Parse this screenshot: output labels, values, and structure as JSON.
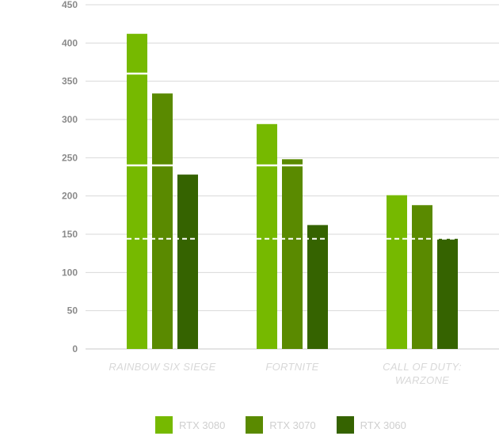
{
  "chart_data": {
    "type": "bar",
    "categories": [
      [
        "RAINBOW SIX SIEGE"
      ],
      [
        "FORTNITE"
      ],
      [
        "CALL OF DUTY:",
        "WARZONE"
      ]
    ],
    "series": [
      {
        "name": "RTX 3080",
        "color": "#76b900",
        "values": [
          412,
          294,
          201
        ]
      },
      {
        "name": "RTX 3070",
        "color": "#5a8a00",
        "values": [
          334,
          248,
          188
        ]
      },
      {
        "name": "RTX 3060",
        "color": "#356300",
        "values": [
          228,
          162,
          144
        ]
      }
    ],
    "ylim": [
      0,
      450
    ],
    "yticks": [
      0,
      50,
      100,
      150,
      200,
      250,
      300,
      350,
      400,
      450
    ],
    "reference_lines": [
      {
        "value": 360,
        "style": "solid"
      },
      {
        "value": 240,
        "style": "solid"
      },
      {
        "value": 144,
        "style": "dashed"
      }
    ],
    "grid": true,
    "legend_position": "bottom"
  }
}
